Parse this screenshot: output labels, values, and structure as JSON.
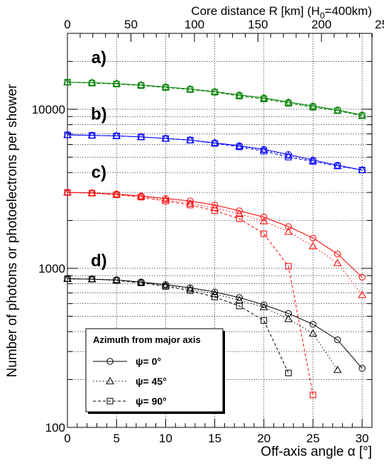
{
  "chart_data": {
    "type": "line",
    "xlabel": "Off-axis angle α [°]",
    "ylabel": "Number of photons or photoelectrons per shower",
    "top_axis_label": "Core distance R [km] (H",
    "top_axis_label_sub": "0",
    "top_axis_label_tail": "=400km)",
    "xlim": [
      0,
      31
    ],
    "ylim": [
      100,
      30000
    ],
    "yscale": "log",
    "top_axis_range": [
      0,
      250
    ],
    "x_ticks": [
      0,
      5,
      10,
      15,
      20,
      25,
      30
    ],
    "x_tick_labels": [
      "0",
      "5",
      "10",
      "15",
      "20",
      "25",
      "30"
    ],
    "top_ticks": [
      0,
      50,
      100,
      150,
      200,
      250
    ],
    "top_tick_labels": [
      "0",
      "50",
      "100",
      "150",
      "200",
      "250"
    ],
    "y_ticks": [
      100,
      1000,
      10000
    ],
    "y_tick_labels": [
      "100",
      "1000",
      "10000"
    ],
    "grid": true,
    "legend": {
      "title": "Azimuth from major axis",
      "placement": "bottom-left",
      "entries": [
        {
          "label": "ψ= 0°",
          "marker": "circle",
          "dash": "solid"
        },
        {
          "label": "ψ= 45°",
          "marker": "triangle",
          "dash": "dotted"
        },
        {
          "label": "ψ= 90°",
          "marker": "square",
          "dash": "dashed"
        }
      ]
    },
    "groups": [
      {
        "label": "a)",
        "label_pos": [
          3.2,
          19500
        ],
        "color": "#008000",
        "psi0": {
          "x": [
            0,
            2.5,
            5,
            7.5,
            10,
            12.5,
            15,
            17.5,
            20,
            22.5,
            25,
            27.5,
            30
          ],
          "y": [
            14800,
            14700,
            14500,
            14200,
            13800,
            13400,
            12900,
            12300,
            11800,
            11100,
            10500,
            9900,
            9200
          ]
        },
        "psi45": {
          "x": [
            0,
            2.5,
            5,
            7.5,
            10,
            12.5,
            15,
            17.5,
            20,
            22.5,
            25,
            27.5,
            30
          ],
          "y": [
            14800,
            14700,
            14500,
            14200,
            13800,
            13400,
            12900,
            12200,
            11700,
            11000,
            10400,
            9800,
            9100
          ]
        },
        "psi90": {
          "x": [
            0,
            2.5,
            5,
            7.5,
            10,
            12.5,
            15,
            17.5,
            20,
            22.5,
            25,
            27.5,
            30
          ],
          "y": [
            14800,
            14600,
            14400,
            14100,
            13700,
            13300,
            12800,
            12100,
            11600,
            10900,
            10300,
            9800,
            9100
          ]
        }
      },
      {
        "label": "b)",
        "label_pos": [
          3.2,
          8600
        ],
        "color": "#0000ff",
        "psi0": {
          "x": [
            0,
            2.5,
            5,
            7.5,
            10,
            12.5,
            15,
            17.5,
            20,
            22.5,
            25,
            27.5,
            30
          ],
          "y": [
            6900,
            6850,
            6800,
            6700,
            6550,
            6400,
            6150,
            5900,
            5600,
            5200,
            4800,
            4450,
            4150
          ]
        },
        "psi45": {
          "x": [
            0,
            2.5,
            5,
            7.5,
            10,
            12.5,
            15,
            17.5,
            20,
            22.5,
            25,
            27.5,
            30
          ],
          "y": [
            6900,
            6850,
            6800,
            6700,
            6550,
            6400,
            6150,
            5850,
            5550,
            5100,
            4750,
            4400,
            4150
          ]
        },
        "psi90": {
          "x": [
            0,
            2.5,
            5,
            7.5,
            10,
            12.5,
            15,
            17.5,
            20,
            22.5,
            25,
            27.5,
            30
          ],
          "y": [
            6900,
            6850,
            6800,
            6700,
            6550,
            6400,
            6100,
            5800,
            5450,
            5000,
            4700,
            4400,
            4150
          ]
        }
      },
      {
        "label": "c)",
        "label_pos": [
          3.2,
          3700
        ],
        "color": "#ff0000",
        "psi0": {
          "x": [
            0,
            2.5,
            5,
            7.5,
            10,
            12.5,
            15,
            17.5,
            20,
            22.5,
            25,
            27.5,
            30
          ],
          "y": [
            3000,
            2980,
            2930,
            2850,
            2750,
            2650,
            2500,
            2300,
            2100,
            1830,
            1550,
            1230,
            880
          ]
        },
        "psi45": {
          "x": [
            0,
            2.5,
            5,
            7.5,
            10,
            12.5,
            15,
            17.5,
            20,
            22.5,
            25,
            27.5,
            30
          ],
          "y": [
            3000,
            2980,
            2920,
            2830,
            2700,
            2550,
            2400,
            2200,
            1980,
            1700,
            1380,
            1080,
            680
          ]
        },
        "psi90": {
          "x": [
            0,
            2.5,
            5,
            7.5,
            10,
            12.5,
            15,
            17.5,
            20,
            22.5,
            25
          ],
          "y": [
            3000,
            2970,
            2900,
            2800,
            2650,
            2500,
            2300,
            2050,
            1650,
            1030,
            160
          ]
        }
      },
      {
        "label": "d)",
        "label_pos": [
          3.2,
          1030
        ],
        "color": "#000000",
        "psi0": {
          "x": [
            0,
            2.5,
            5,
            7.5,
            10,
            12.5,
            15,
            17.5,
            20,
            22.5,
            25,
            27.5,
            30
          ],
          "y": [
            860,
            855,
            845,
            820,
            790,
            755,
            710,
            655,
            590,
            520,
            445,
            355,
            235
          ]
        },
        "psi45": {
          "x": [
            0,
            2.5,
            5,
            7.5,
            10,
            12.5,
            15,
            17.5,
            20,
            22.5,
            25,
            27.5
          ],
          "y": [
            860,
            855,
            845,
            815,
            780,
            740,
            690,
            630,
            570,
            480,
            390,
            230
          ]
        },
        "psi90": {
          "x": [
            0,
            2.5,
            5,
            7.5,
            10,
            12.5,
            15,
            17.5,
            20,
            22.5
          ],
          "y": [
            860,
            855,
            840,
            810,
            770,
            725,
            660,
            580,
            470,
            220
          ]
        }
      }
    ]
  }
}
